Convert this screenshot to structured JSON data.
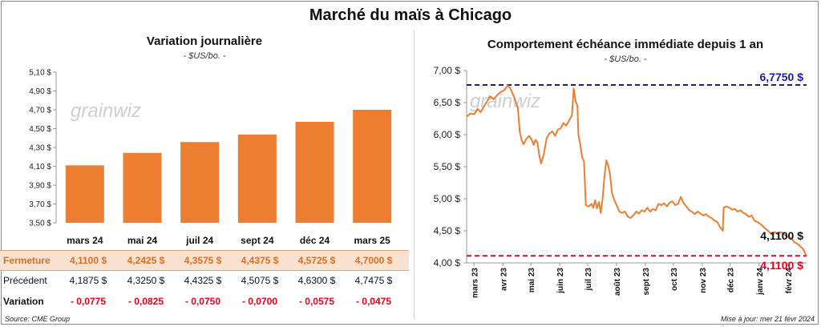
{
  "title": "Marché du maïs à Chicago",
  "left_chart_title": "Variation journalière",
  "left_chart_unit": "- $US/bo. -",
  "right_chart_title": "Comportement  échéance immédiate depuis 1 an",
  "right_chart_unit": "- $US/bo. -",
  "watermark": "grainwiz",
  "table": {
    "row_labels": {
      "fermeture": "Fermeture",
      "precedent": "Précédent",
      "variation": "Variation"
    },
    "fermeture": [
      "4,1100  $",
      "4,2425  $",
      "4,3575  $",
      "4,4375  $",
      "4,5725  $",
      "4,7000  $"
    ],
    "precedent": [
      "4,1875  $",
      "4,3250  $",
      "4,4325  $",
      "4,5075  $",
      "4,6300  $",
      "4,7475  $"
    ],
    "variation": [
      "- 0,0775",
      "- 0,0825",
      "- 0,0750",
      "- 0,0700",
      "- 0,0575",
      "- 0,0475"
    ]
  },
  "source": "Source: CME Group",
  "update": "Mise à jour: mer 21 févr 2024",
  "chart_data": [
    {
      "type": "bar",
      "title": "Variation journalière",
      "categories": [
        "mars 24",
        "mai 24",
        "juil 24",
        "sept 24",
        "déc 24",
        "mars 25"
      ],
      "values": [
        4.11,
        4.2425,
        4.3575,
        4.4375,
        4.5725,
        4.7
      ],
      "ylim": [
        3.5,
        5.1
      ],
      "ytick_values": [
        3.5,
        3.7,
        3.9,
        4.1,
        4.3,
        4.5,
        4.7,
        4.9,
        5.1
      ],
      "yticks": [
        "3,50 $",
        "3,70 $",
        "3,90 $",
        "4,10 $",
        "4,30 $",
        "4,50 $",
        "4,70 $",
        "4,90 $",
        "5,10 $"
      ],
      "color": "#ed7d31",
      "grid": false
    },
    {
      "type": "line",
      "title": "Comportement  échéance immédiate depuis 1 an",
      "x_start": "2023-02-21",
      "x_end": "2024-02-21",
      "xtick_dates": [
        "2023-03-01",
        "2023-04-01",
        "2023-05-01",
        "2023-06-01",
        "2023-07-01",
        "2023-08-01",
        "2023-09-01",
        "2023-10-01",
        "2023-11-01",
        "2023-12-01",
        "2024-01-01",
        "2024-02-01"
      ],
      "xticks": [
        "mars 23",
        "avr 23",
        "mai 23",
        "juin 23",
        "juil 23",
        "août 23",
        "sept 23",
        "oct 23",
        "nov 23",
        "déc 23",
        "janv 24",
        "févr 24"
      ],
      "ylim": [
        4.0,
        7.0
      ],
      "ytick_values": [
        4.0,
        4.5,
        5.0,
        5.5,
        6.0,
        6.5,
        7.0
      ],
      "yticks": [
        "4,00 $",
        "4,50 $",
        "5,00 $",
        "5,50 $",
        "6,00 $",
        "6,50 $",
        "7,00 $"
      ],
      "color": "#ed7d31",
      "points": [
        [
          "2023-02-21",
          6.28
        ],
        [
          "2023-02-25",
          6.33
        ],
        [
          "2023-03-01",
          6.32
        ],
        [
          "2023-03-05",
          6.4
        ],
        [
          "2023-03-08",
          6.35
        ],
        [
          "2023-03-12",
          6.45
        ],
        [
          "2023-03-15",
          6.52
        ],
        [
          "2023-03-18",
          6.6
        ],
        [
          "2023-03-22",
          6.55
        ],
        [
          "2023-03-26",
          6.62
        ],
        [
          "2023-03-29",
          6.66
        ],
        [
          "2023-04-03",
          6.7
        ],
        [
          "2023-04-06",
          6.77
        ],
        [
          "2023-04-09",
          6.72
        ],
        [
          "2023-04-12",
          6.62
        ],
        [
          "2023-04-15",
          6.5
        ],
        [
          "2023-04-17",
          6.42
        ],
        [
          "2023-04-19",
          6.05
        ],
        [
          "2023-04-21",
          5.92
        ],
        [
          "2023-04-23",
          5.85
        ],
        [
          "2023-04-26",
          5.93
        ],
        [
          "2023-04-29",
          5.98
        ],
        [
          "2023-05-02",
          5.92
        ],
        [
          "2023-05-04",
          5.84
        ],
        [
          "2023-05-06",
          5.92
        ],
        [
          "2023-05-08",
          5.88
        ],
        [
          "2023-05-10",
          5.68
        ],
        [
          "2023-05-12",
          5.55
        ],
        [
          "2023-05-15",
          5.7
        ],
        [
          "2023-05-18",
          5.95
        ],
        [
          "2023-05-21",
          6.02
        ],
        [
          "2023-05-24",
          6.05
        ],
        [
          "2023-05-27",
          5.98
        ],
        [
          "2023-05-30",
          6.08
        ],
        [
          "2023-06-02",
          6.1
        ],
        [
          "2023-06-05",
          6.18
        ],
        [
          "2023-06-08",
          6.14
        ],
        [
          "2023-06-11",
          6.22
        ],
        [
          "2023-06-14",
          6.3
        ],
        [
          "2023-06-16",
          6.72
        ],
        [
          "2023-06-18",
          6.52
        ],
        [
          "2023-06-20",
          6.45
        ],
        [
          "2023-06-21",
          6.0
        ],
        [
          "2023-06-23",
          5.85
        ],
        [
          "2023-06-25",
          5.65
        ],
        [
          "2023-06-27",
          5.58
        ],
        [
          "2023-06-29",
          4.9
        ],
        [
          "2023-07-02",
          4.88
        ],
        [
          "2023-07-05",
          4.92
        ],
        [
          "2023-07-07",
          4.86
        ],
        [
          "2023-07-09",
          4.98
        ],
        [
          "2023-07-11",
          4.85
        ],
        [
          "2023-07-13",
          4.95
        ],
        [
          "2023-07-15",
          4.78
        ],
        [
          "2023-07-17",
          5.0
        ],
        [
          "2023-07-19",
          5.35
        ],
        [
          "2023-07-21",
          5.6
        ],
        [
          "2023-07-23",
          5.52
        ],
        [
          "2023-07-25",
          5.38
        ],
        [
          "2023-07-27",
          5.1
        ],
        [
          "2023-07-29",
          5.0
        ],
        [
          "2023-08-01",
          4.9
        ],
        [
          "2023-08-04",
          4.8
        ],
        [
          "2023-08-07",
          4.78
        ],
        [
          "2023-08-10",
          4.8
        ],
        [
          "2023-08-13",
          4.72
        ],
        [
          "2023-08-16",
          4.7
        ],
        [
          "2023-08-19",
          4.74
        ],
        [
          "2023-08-22",
          4.8
        ],
        [
          "2023-08-25",
          4.77
        ],
        [
          "2023-08-28",
          4.82
        ],
        [
          "2023-08-31",
          4.8
        ],
        [
          "2023-09-03",
          4.86
        ],
        [
          "2023-09-06",
          4.8
        ],
        [
          "2023-09-09",
          4.84
        ],
        [
          "2023-09-12",
          4.82
        ],
        [
          "2023-09-15",
          4.92
        ],
        [
          "2023-09-18",
          4.9
        ],
        [
          "2023-09-21",
          4.93
        ],
        [
          "2023-09-24",
          4.88
        ],
        [
          "2023-09-27",
          4.94
        ],
        [
          "2023-09-30",
          4.96
        ],
        [
          "2023-10-03",
          4.9
        ],
        [
          "2023-10-06",
          4.92
        ],
        [
          "2023-10-09",
          5.03
        ],
        [
          "2023-10-12",
          4.93
        ],
        [
          "2023-10-15",
          4.88
        ],
        [
          "2023-10-18",
          4.82
        ],
        [
          "2023-10-21",
          4.8
        ],
        [
          "2023-10-24",
          4.76
        ],
        [
          "2023-10-27",
          4.8
        ],
        [
          "2023-10-30",
          4.77
        ],
        [
          "2023-11-02",
          4.74
        ],
        [
          "2023-11-05",
          4.76
        ],
        [
          "2023-11-08",
          4.72
        ],
        [
          "2023-11-11",
          4.7
        ],
        [
          "2023-11-14",
          4.66
        ],
        [
          "2023-11-17",
          4.64
        ],
        [
          "2023-11-20",
          4.56
        ],
        [
          "2023-11-23",
          4.5
        ],
        [
          "2023-11-24",
          4.86
        ],
        [
          "2023-11-27",
          4.88
        ],
        [
          "2023-11-30",
          4.86
        ],
        [
          "2023-12-03",
          4.83
        ],
        [
          "2023-12-06",
          4.84
        ],
        [
          "2023-12-09",
          4.8
        ],
        [
          "2023-12-12",
          4.82
        ],
        [
          "2023-12-15",
          4.78
        ],
        [
          "2023-12-18",
          4.76
        ],
        [
          "2023-12-21",
          4.72
        ],
        [
          "2023-12-24",
          4.74
        ],
        [
          "2023-12-27",
          4.66
        ],
        [
          "2023-12-30",
          4.64
        ],
        [
          "2024-01-03",
          4.6
        ],
        [
          "2024-01-06",
          4.56
        ],
        [
          "2024-01-09",
          4.52
        ],
        [
          "2024-01-12",
          4.48
        ],
        [
          "2024-01-15",
          4.44
        ],
        [
          "2024-01-18",
          4.48
        ],
        [
          "2024-01-21",
          4.45
        ],
        [
          "2024-01-24",
          4.48
        ],
        [
          "2024-01-27",
          4.46
        ],
        [
          "2024-01-30",
          4.42
        ],
        [
          "2024-02-02",
          4.4
        ],
        [
          "2024-02-05",
          4.38
        ],
        [
          "2024-02-08",
          4.32
        ],
        [
          "2024-02-11",
          4.3
        ],
        [
          "2024-02-14",
          4.26
        ],
        [
          "2024-02-17",
          4.22
        ],
        [
          "2024-02-21",
          4.11
        ]
      ],
      "max_line": {
        "value": 6.775,
        "label": "6,7750 $",
        "color": "#1a1aa6"
      },
      "min_line": {
        "value": 4.11,
        "label": "4,1100 $",
        "color": "#e8001c"
      },
      "last_label": {
        "value": 4.11,
        "label": "4,1100 $"
      }
    }
  ]
}
